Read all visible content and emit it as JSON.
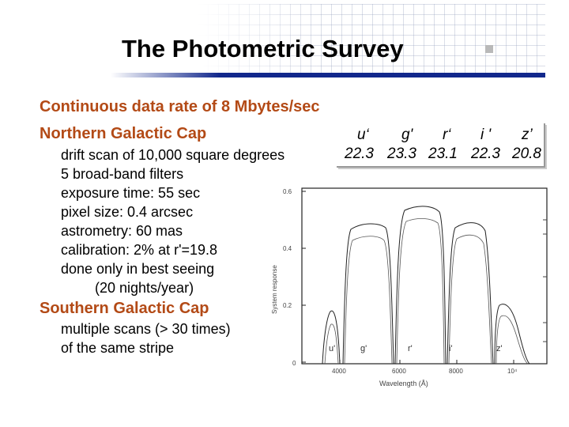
{
  "title": "The Photometric Survey",
  "data_rate": "Continuous data rate of 8 Mbytes/sec",
  "north": {
    "heading": "Northern Galactic Cap",
    "items": [
      "drift scan of 10,000 square degrees",
      "5 broad-band filters",
      "exposure time: 55 sec",
      "pixel size: 0.4 arcsec",
      "astrometry: 60 mas",
      "calibration: 2% at r'=19.8",
      "done only in best seeing",
      "(20 nights/year)"
    ]
  },
  "south": {
    "heading": "Southern Galactic Cap",
    "items": [
      "multiple scans (> 30 times)",
      "of the same stripe"
    ]
  },
  "filters": {
    "names": [
      "u‘",
      "g'",
      "r‘",
      "i '",
      "z’"
    ],
    "mags": [
      "22.3",
      "23.3",
      "23.1",
      "22.3",
      "20.8"
    ]
  },
  "plot": {
    "ylabel": "System response",
    "xlabel": "Wavelength (Å)",
    "yticks": [
      "0.6",
      "0.4",
      "0.2",
      "0"
    ],
    "xticks": [
      "4000",
      "6000",
      "8000",
      "10⁴"
    ],
    "filter_labels": [
      "u'",
      "g'",
      "r'",
      "i'",
      "z'"
    ]
  },
  "colors": {
    "heading": "#b34a16",
    "rule": "#12288c"
  }
}
